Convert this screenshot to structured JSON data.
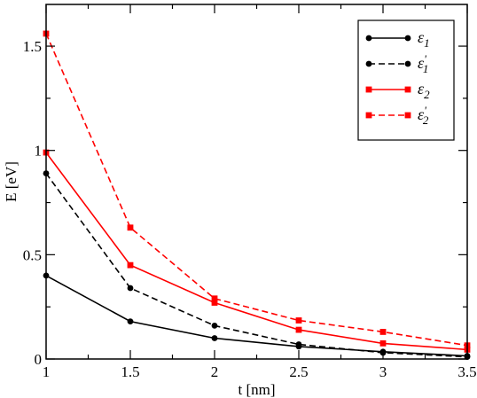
{
  "chart_data": {
    "type": "line",
    "title": "",
    "xlabel": "t [nm]",
    "ylabel": "E [eV]",
    "xlim": [
      1,
      3.5
    ],
    "ylim": [
      0,
      1.7
    ],
    "xticks": [
      1,
      1.5,
      2,
      2.5,
      3,
      3.5
    ],
    "xtick_labels": [
      "1",
      "1.5",
      "2",
      "2.5",
      "3",
      "3.5"
    ],
    "yticks": [
      0,
      0.5,
      1,
      1.5
    ],
    "ytick_labels": [
      "0",
      "0.5",
      "1",
      "1.5"
    ],
    "grid": false,
    "legend_position": "top-right",
    "x": [
      1,
      1.5,
      2,
      2.5,
      3,
      3.5
    ],
    "series": [
      {
        "name": "ε1",
        "name_base": "ε",
        "name_sub": "1",
        "name_prime": "",
        "color": "#000000",
        "dash": "solid",
        "marker": "circle",
        "values": [
          0.4,
          0.18,
          0.1,
          0.06,
          0.035,
          0.015
        ]
      },
      {
        "name": "ε'1",
        "name_base": "ε",
        "name_sub": "1",
        "name_prime": "'",
        "color": "#000000",
        "dash": "dashed",
        "marker": "circle",
        "values": [
          0.89,
          0.34,
          0.16,
          0.07,
          0.03,
          0.01
        ]
      },
      {
        "name": "ε2",
        "name_base": "ε",
        "name_sub": "2",
        "name_prime": "",
        "color": "#ff0000",
        "dash": "solid",
        "marker": "square",
        "values": [
          0.99,
          0.45,
          0.27,
          0.14,
          0.075,
          0.045
        ]
      },
      {
        "name": "ε'2",
        "name_base": "ε",
        "name_sub": "2",
        "name_prime": "'",
        "color": "#ff0000",
        "dash": "dashed",
        "marker": "square",
        "values": [
          1.56,
          0.63,
          0.29,
          0.185,
          0.13,
          0.065
        ]
      }
    ]
  }
}
